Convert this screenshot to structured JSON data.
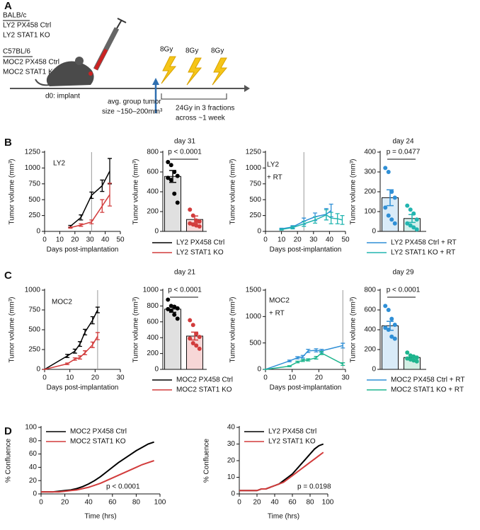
{
  "panel_labels": [
    "A",
    "B",
    "C",
    "D"
  ],
  "schematic": {
    "strain_groups": [
      {
        "strain": "BALB/c",
        "lines": [
          "LY2 PX458 Ctrl",
          "LY2 STAT1 KO"
        ]
      },
      {
        "strain": "C57BL/6",
        "lines": [
          "MOC2 PX458 Ctrl",
          "MOC2 STAT1 KO"
        ]
      }
    ],
    "implant": "d0: implant",
    "tumor_size_lines": [
      "avg. group tumor",
      "size ~150–200mm³"
    ],
    "doses": [
      "8Gy",
      "8Gy",
      "8Gy"
    ],
    "regimen_lines": [
      "24Gy in 3 fractions",
      "across ~1 week"
    ]
  },
  "chart_data": [
    {
      "type": "line",
      "label_lines": [
        "LY2"
      ],
      "xlabel": "Days post-implantation",
      "ylabel": "Tumor volume (mm³)",
      "xlim": [
        0,
        50
      ],
      "xticks": [
        0,
        10,
        20,
        30,
        40,
        50
      ],
      "ylim": [
        0,
        1250
      ],
      "yticks": [
        0,
        250,
        500,
        750,
        1000,
        1250
      ],
      "vline": 31,
      "series": [
        {
          "name": "LY2 PX458 Ctrl",
          "color": "#000000",
          "x": [
            17,
            24,
            31,
            38,
            43
          ],
          "values": [
            80,
            220,
            570,
            720,
            950
          ],
          "errors": [
            15,
            40,
            50,
            90,
            200
          ]
        },
        {
          "name": "LY2 STAT1 KO",
          "color": "#d23c3c",
          "x": [
            17,
            24,
            31,
            38,
            43
          ],
          "values": [
            60,
            100,
            150,
            400,
            580
          ],
          "errors": [
            10,
            20,
            30,
            100,
            180
          ]
        }
      ]
    },
    {
      "type": "bar",
      "title": "day 31",
      "annotation": "p < 0.0001",
      "ylabel": "Tumor volume (mm³)",
      "categories": [
        null,
        null
      ],
      "ylim": [
        0,
        800
      ],
      "yticks": [
        0,
        200,
        400,
        600,
        800
      ],
      "values": [
        555,
        120
      ],
      "errors": [
        60,
        35
      ],
      "colors": [
        "#e0e0e0",
        "#f7d7d7"
      ],
      "point_colors": [
        "#000000",
        "#d23c3c"
      ],
      "points": [
        [
          700,
          670,
          600,
          560,
          540,
          520,
          380,
          290
        ],
        [
          220,
          160,
          110,
          100,
          80,
          70,
          60,
          50
        ]
      ]
    },
    {
      "type": "line",
      "label_lines": [
        "LY2",
        "+ RT"
      ],
      "xlabel": "Days post-implantation",
      "ylabel": "Tumor volume (mm³)",
      "xlim": [
        0,
        50
      ],
      "xticks": [
        0,
        10,
        20,
        30,
        40,
        50
      ],
      "ylim": [
        0,
        1250
      ],
      "yticks": [
        0,
        250,
        500,
        750,
        1000,
        1250
      ],
      "vline": 24,
      "series": [
        {
          "name": "LY2 PX458 Ctrl + RT",
          "color": "#2f8fd6",
          "x": [
            10,
            17,
            24,
            31,
            38,
            41
          ],
          "values": [
            40,
            70,
            160,
            230,
            270,
            330
          ],
          "errors": [
            10,
            20,
            50,
            60,
            90,
            100
          ]
        },
        {
          "name": "LY2 STAT1 KO + RT",
          "color": "#22b5b0",
          "x": [
            10,
            17,
            24,
            31,
            38,
            41,
            45,
            48
          ],
          "values": [
            30,
            60,
            120,
            180,
            260,
            210,
            200,
            180
          ],
          "errors": [
            10,
            20,
            40,
            50,
            80,
            90,
            80,
            70
          ]
        }
      ]
    },
    {
      "type": "bar",
      "title": "day 24",
      "annotation": "p = 0.0477",
      "ylabel": "Tumor volume (mm³)",
      "categories": [
        null,
        null
      ],
      "ylim": [
        0,
        400
      ],
      "yticks": [
        0,
        100,
        200,
        300,
        400
      ],
      "values": [
        170,
        65
      ],
      "errors": [
        40,
        20
      ],
      "colors": [
        "#d9ebf8",
        "#d3efec"
      ],
      "point_colors": [
        "#2f8fd6",
        "#22b5b0"
      ],
      "points": [
        [
          320,
          300,
          200,
          170,
          120,
          80,
          60,
          40
        ],
        [
          130,
          110,
          90,
          60,
          40,
          30,
          20,
          10
        ]
      ]
    },
    {
      "type": "line",
      "label_lines": [
        "MOC2"
      ],
      "xlabel": "Days post-implantation",
      "ylabel": "Tumor volume (mm³)",
      "xlim": [
        0,
        30
      ],
      "xticks": [
        0,
        10,
        20,
        30
      ],
      "ylim": [
        0,
        1000
      ],
      "yticks": [
        0,
        250,
        500,
        750,
        1000
      ],
      "vline": 21,
      "series": [
        {
          "name": "MOC2 PX458 Ctrl",
          "color": "#000000",
          "x": [
            0,
            9,
            12,
            14,
            16,
            19,
            21
          ],
          "values": [
            0,
            170,
            230,
            320,
            470,
            620,
            750
          ],
          "errors": [
            0,
            20,
            25,
            30,
            35,
            45,
            35
          ]
        },
        {
          "name": "MOC2 STAT1 KO",
          "color": "#d23c3c",
          "x": [
            0,
            9,
            12,
            14,
            16,
            19,
            21
          ],
          "values": [
            0,
            70,
            130,
            150,
            210,
            310,
            420
          ],
          "errors": [
            0,
            10,
            15,
            20,
            25,
            35,
            45
          ]
        }
      ]
    },
    {
      "type": "bar",
      "title": "day 21",
      "annotation": "p < 0.0001",
      "ylabel": "Tumor volume (mm³)",
      "categories": [
        null,
        null
      ],
      "ylim": [
        0,
        1000
      ],
      "yticks": [
        0,
        200,
        400,
        600,
        800,
        1000
      ],
      "values": [
        760,
        420
      ],
      "errors": [
        40,
        50
      ],
      "colors": [
        "#e0e0e0",
        "#f7d7d7"
      ],
      "point_colors": [
        "#000000",
        "#d23c3c"
      ],
      "points": [
        [
          880,
          800,
          790,
          770,
          760,
          740,
          690,
          640
        ],
        [
          620,
          560,
          450,
          410,
          390,
          330,
          300,
          260
        ]
      ]
    },
    {
      "type": "line",
      "label_lines": [
        "MOC2",
        "+ RT"
      ],
      "xlabel": "Days post-implantation",
      "ylabel": "Tumor volume (mm³)",
      "xlim": [
        0,
        30
      ],
      "xticks": [
        0,
        10,
        20,
        30
      ],
      "ylim": [
        0,
        1500
      ],
      "yticks": [
        0,
        500,
        1000,
        1500
      ],
      "vline": 29,
      "series": [
        {
          "name": "MOC2 PX458 Ctrl + RT",
          "color": "#2f8fd6",
          "x": [
            0,
            9,
            12,
            14,
            16,
            19,
            21,
            29
          ],
          "values": [
            0,
            160,
            220,
            240,
            350,
            360,
            350,
            450
          ],
          "errors": [
            0,
            15,
            20,
            25,
            30,
            30,
            30,
            45
          ]
        },
        {
          "name": "MOC2 STAT1 KO + RT",
          "color": "#1fb58e",
          "x": [
            0,
            9,
            12,
            14,
            16,
            19,
            21,
            29
          ],
          "values": [
            0,
            60,
            140,
            170,
            180,
            220,
            310,
            100
          ],
          "errors": [
            0,
            10,
            15,
            20,
            20,
            25,
            30,
            25
          ]
        }
      ]
    },
    {
      "type": "bar",
      "title": "day 29",
      "annotation": "p < 0.0001",
      "ylabel": "Tumor volume (mm³)",
      "categories": [
        null,
        null
      ],
      "ylim": [
        0,
        800
      ],
      "yticks": [
        0,
        200,
        400,
        600,
        800
      ],
      "values": [
        440,
        120
      ],
      "errors": [
        45,
        15
      ],
      "colors": [
        "#d9ebf8",
        "#d3efe4"
      ],
      "point_colors": [
        "#2f8fd6",
        "#1fb58e"
      ],
      "points": [
        [
          640,
          600,
          510,
          450,
          420,
          400,
          330,
          310
        ],
        [
          170,
          140,
          130,
          120,
          110,
          100,
          90,
          80
        ]
      ]
    },
    {
      "type": "line",
      "annotation": "p < 0.0001",
      "xlabel": "Time (hrs)",
      "ylabel": "% Confluence",
      "xlim": [
        0,
        100
      ],
      "xticks": [
        0,
        20,
        40,
        60,
        80,
        100
      ],
      "ylim": [
        0,
        100
      ],
      "yticks": [
        0,
        20,
        40,
        60,
        80,
        100
      ],
      "series": [
        {
          "name": "MOC2 PX458 Ctrl",
          "color": "#000000",
          "x": [
            0,
            5,
            10,
            15,
            20,
            25,
            30,
            35,
            40,
            45,
            50,
            55,
            60,
            65,
            70,
            75,
            80,
            85,
            90,
            95
          ],
          "values": [
            3,
            3,
            3,
            4,
            5,
            6,
            8,
            11,
            15,
            20,
            26,
            33,
            40,
            47,
            53,
            59,
            65,
            70,
            75,
            78
          ]
        },
        {
          "name": "MOC2 STAT1 KO",
          "color": "#d23c3c",
          "x": [
            0,
            5,
            10,
            15,
            20,
            25,
            30,
            35,
            40,
            45,
            50,
            55,
            60,
            65,
            70,
            75,
            80,
            85,
            90,
            95
          ],
          "values": [
            3,
            3,
            3,
            3,
            4,
            5,
            6,
            8,
            10,
            13,
            16,
            20,
            24,
            28,
            32,
            36,
            40,
            44,
            47,
            50
          ]
        }
      ]
    },
    {
      "type": "line",
      "annotation": "p = 0.0198",
      "xlabel": "Time (hrs)",
      "ylabel": "% Confluence",
      "xlim": [
        0,
        100
      ],
      "xticks": [
        0,
        20,
        40,
        60,
        80,
        100
      ],
      "ylim": [
        0,
        40
      ],
      "yticks": [
        0,
        10,
        20,
        30,
        40
      ],
      "series": [
        {
          "name": "LY2 PX458 Ctrl",
          "color": "#000000",
          "x": [
            0,
            5,
            10,
            15,
            20,
            25,
            30,
            35,
            40,
            45,
            50,
            55,
            60,
            65,
            70,
            75,
            80,
            85,
            90,
            95
          ],
          "values": [
            2,
            2,
            2,
            2,
            2,
            3,
            3,
            4,
            5,
            6,
            8,
            10,
            12,
            15,
            18,
            21,
            24,
            27,
            29,
            30
          ]
        },
        {
          "name": "LY2 STAT1 KO",
          "color": "#d23c3c",
          "x": [
            0,
            5,
            10,
            15,
            20,
            25,
            30,
            35,
            40,
            45,
            50,
            55,
            60,
            65,
            70,
            75,
            80,
            85,
            90,
            95
          ],
          "values": [
            2,
            2,
            2,
            2,
            2,
            3,
            3,
            4,
            5,
            6,
            7,
            9,
            11,
            13,
            15,
            17,
            19,
            21,
            23,
            25
          ]
        }
      ]
    }
  ]
}
